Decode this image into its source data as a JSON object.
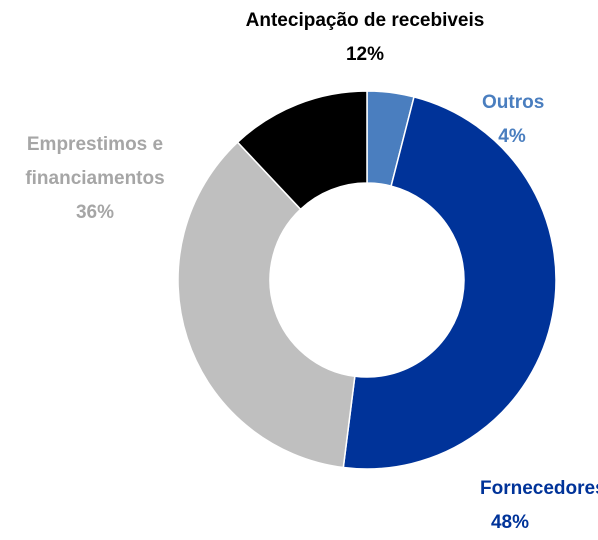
{
  "chart_data": {
    "type": "donut",
    "categories": [
      "Outros",
      "Fornecedores",
      "Emprestimos e financiamentos",
      "Antecipação de recebiveis"
    ],
    "values": [
      4,
      48,
      36,
      12
    ],
    "value_labels": [
      "4%",
      "48%",
      "36%",
      "12%"
    ],
    "colors": [
      "#4a7ebf",
      "#003399",
      "#bfbfbf",
      "#000000"
    ]
  }
}
